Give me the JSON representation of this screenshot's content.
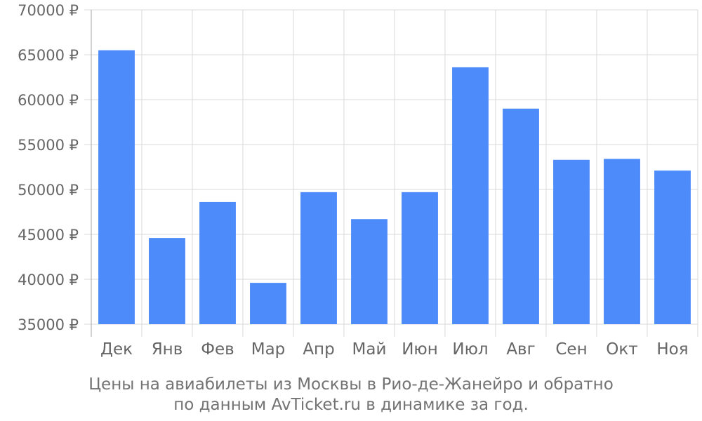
{
  "chart_data": {
    "type": "bar",
    "categories": [
      "Дек",
      "Янв",
      "Фев",
      "Мар",
      "Апр",
      "Май",
      "Июн",
      "Июл",
      "Авг",
      "Сен",
      "Окт",
      "Ноя"
    ],
    "values": [
      65500,
      44600,
      48600,
      39600,
      49700,
      46700,
      49700,
      63600,
      59000,
      53300,
      53400,
      52100
    ],
    "ylim": [
      35000,
      70000
    ],
    "yticks": [
      35000,
      40000,
      45000,
      50000,
      55000,
      60000,
      65000,
      70000
    ],
    "y_unit": "₽",
    "grid": true,
    "bar_color": "#4d8afa",
    "title": "",
    "xlabel": "",
    "ylabel": ""
  },
  "caption": {
    "line1": "Цены на авиабилеты из Москвы в Рио-де-Жанейро и обратно",
    "line2": "по данным AvTicket.ru в динамике за год."
  },
  "colors": {
    "grid": "#d9d9d9",
    "axis": "#a6a6a6",
    "text": "#666666",
    "caption": "#737373"
  }
}
